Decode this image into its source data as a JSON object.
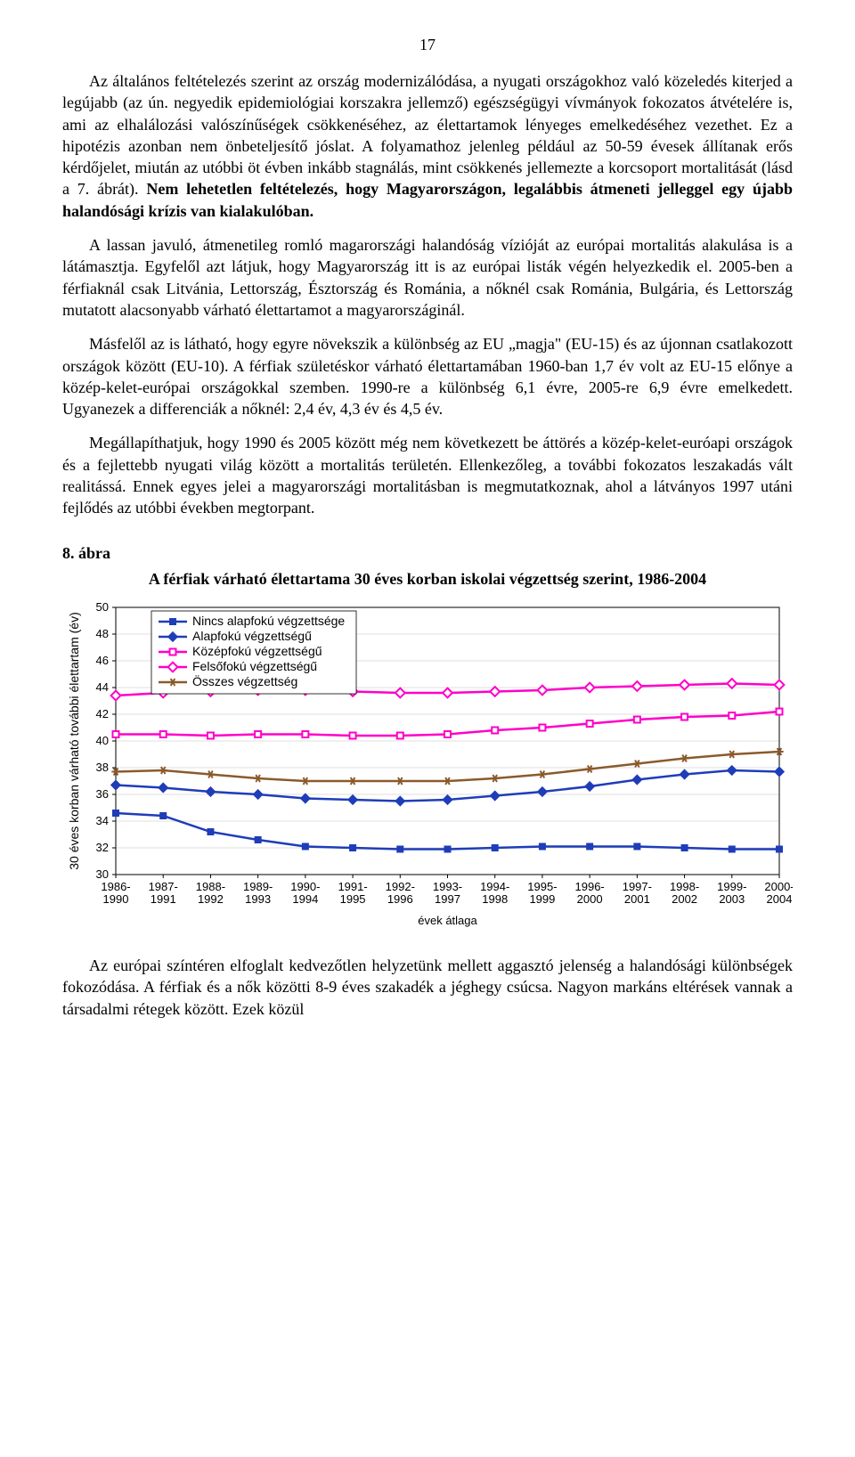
{
  "page_number": "17",
  "paragraphs": {
    "p1a": "Az általános feltételezés szerint az ország modernizálódása, a nyugati országokhoz való közeledés kiterjed a legújabb (az ún. negyedik epidemiológiai korszakra jellemző) egészségügyi vívmányok fokozatos átvételére is, ami az elhalálozási valószínűségek csökkenéséhez, az élettartamok lényeges emelkedéséhez vezethet. Ez a hipotézis azonban nem önbeteljesítő jóslat. A folyamathoz jelenleg például az 50-59 évesek állítanak erős kérdőjelet, miután az utóbbi öt évben inkább stagnálás, mint csökkenés jellemezte a korcsoport mortalitását (lásd a 7. ábrát). ",
    "p1b": "Nem lehetetlen feltételezés, hogy Magyarországon, legalábbis átmeneti jelleggel egy újabb halandósági krízis van kialakulóban.",
    "p2": "A lassan javuló, átmenetileg romló magarországi halandóság vízióját az európai mortalitás alakulása is a látámasztja. Egyfelől azt látjuk, hogy Magyarország itt is az európai listák végén helyezkedik el. 2005-ben a férfiaknál csak Litvánia, Lettország, Észtország és Románia, a nőknél csak Románia, Bulgária, és Lettország mutatott alacsonyabb várható élettartamot a magyarországinál.",
    "p3": "Másfelől az is látható, hogy egyre növekszik a különbség az EU „magja\" (EU-15) és az újonnan csatlakozott országok között (EU-10). A férfiak születéskor várható élettartamában 1960-ban 1,7 év volt az EU-15 előnye a közép-kelet-európai országokkal szemben. 1990-re a különbség 6,1 évre, 2005-re 6,9 évre emelkedett. Ugyanezek a differenciák a nőknél: 2,4 év, 4,3 év és 4,5 év.",
    "p4": "Megállapíthatjuk, hogy 1990 és 2005 között még nem következett be áttörés a közép-kelet-euróapi országok és a fejlettebb nyugati világ között a mortalitás területén. Ellenkezőleg, a további fokozatos leszakadás vált realitássá. Ennek egyes jelei a magyarországi mortalitásban is megmutatkoznak, ahol a látványos 1997 utáni fejlődés az utóbbi években megtorpant.",
    "p5": "Az európai színtéren elfoglalt kedvezőtlen helyzetünk mellett aggasztó jelenség a halandósági különbségek fokozódása. A férfiak és a nők közötti 8-9 éves szakadék a jéghegy csúcsa. Nagyon markáns eltérések vannak a társadalmi rétegek között. Ezek közül"
  },
  "figure": {
    "label": "8. ábra",
    "title": "A férfiak várható élettartama 30 éves korban iskolai végzettség szerint, 1986-2004"
  },
  "chart": {
    "type": "line",
    "background_color": "#ffffff",
    "grid_color": "#000000",
    "ylim": [
      30,
      50
    ],
    "ytick_step": 2,
    "yticks": [
      30,
      32,
      34,
      36,
      38,
      40,
      42,
      44,
      46,
      48,
      50
    ],
    "ylabel": "30 éves korban várható további élettartam (év)",
    "xlabel": "évek átlaga",
    "x_categories": [
      "1986-\n1990",
      "1987-\n1991",
      "1988-\n1992",
      "1989-\n1993",
      "1990-\n1994",
      "1991-\n1995",
      "1992-\n1996",
      "1993-\n1997",
      "1994-\n1998",
      "1995-\n1999",
      "1996-\n2000",
      "1997-\n2001",
      "1998-\n2002",
      "1999-\n2003",
      "2000-\n2004"
    ],
    "line_width": 2.5,
    "marker_size": 7,
    "legend_position": "top-left",
    "series": [
      {
        "name": "Nincs alapfokú végzettsége",
        "color": "#1f3db8",
        "marker": "square-filled",
        "values": [
          34.6,
          34.4,
          33.2,
          32.6,
          32.1,
          32.0,
          31.9,
          31.9,
          32.0,
          32.1,
          32.1,
          32.1,
          32.0,
          31.9,
          31.9
        ]
      },
      {
        "name": "Alapfokú végzettségű",
        "color": "#1f3db8",
        "marker": "diamond-filled",
        "values": [
          36.7,
          36.5,
          36.2,
          36.0,
          35.7,
          35.6,
          35.5,
          35.6,
          35.9,
          36.2,
          36.6,
          37.1,
          37.5,
          37.8,
          37.7
        ]
      },
      {
        "name": "Középfokú végzettségű",
        "color": "#ff00c8",
        "marker": "square-open",
        "values": [
          40.5,
          40.5,
          40.4,
          40.5,
          40.5,
          40.4,
          40.4,
          40.5,
          40.8,
          41.0,
          41.3,
          41.6,
          41.8,
          41.9,
          42.2
        ]
      },
      {
        "name": "Felsőfokú végzettségű",
        "color": "#ff00c8",
        "marker": "diamond-open",
        "values": [
          43.4,
          43.6,
          43.7,
          43.8,
          43.8,
          43.7,
          43.6,
          43.6,
          43.7,
          43.8,
          44.0,
          44.1,
          44.2,
          44.3,
          44.2
        ]
      },
      {
        "name": "Összes végzettség",
        "color": "#8b5a2b",
        "marker": "asterisk",
        "values": [
          37.7,
          37.8,
          37.5,
          37.2,
          37.0,
          37.0,
          37.0,
          37.0,
          37.2,
          37.5,
          37.9,
          38.3,
          38.7,
          39.0,
          39.2
        ]
      }
    ]
  }
}
